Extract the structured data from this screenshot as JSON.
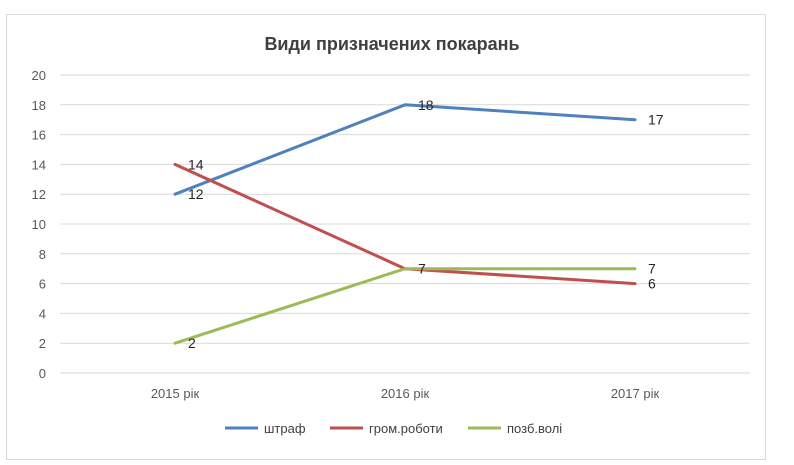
{
  "chart_data": {
    "type": "line",
    "title": "Види призначених покарань",
    "categories": [
      "2015 рік",
      "2016 рік",
      "2017 рік"
    ],
    "ylim": [
      0,
      20
    ],
    "y_ticks": [
      0,
      2,
      4,
      6,
      8,
      10,
      12,
      14,
      16,
      18,
      20
    ],
    "grid": true,
    "legend_position": "bottom",
    "series": [
      {
        "name": "штраф",
        "values": [
          12,
          18,
          17
        ],
        "color": "#4f81bd"
      },
      {
        "name": "гром.роботи",
        "values": [
          14,
          7,
          6
        ],
        "color": "#c0504d"
      },
      {
        "name": "позб.волі",
        "values": [
          2,
          7,
          7
        ],
        "color": "#9bbb59"
      }
    ],
    "data_labels": [
      {
        "series": "штраф",
        "labels": [
          "12",
          "18",
          "17"
        ]
      },
      {
        "series": "гром.роботи",
        "labels": [
          "14",
          "",
          "6"
        ]
      },
      {
        "series": "позб.волі",
        "labels": [
          "2",
          "7",
          "7"
        ]
      }
    ]
  }
}
